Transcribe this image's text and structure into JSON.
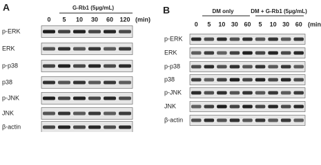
{
  "panels": [
    {
      "label": "A",
      "treatment": "G-Rb1 (5μg/mL)",
      "times": [
        "0",
        "5",
        "10",
        "30",
        "60",
        "120"
      ],
      "unit": "(min)",
      "rows": [
        "p-ERK",
        "ERK",
        "p-p38",
        "p38",
        "p-JNK",
        "JNK",
        "β-actin"
      ]
    },
    {
      "label": "B",
      "groups": [
        {
          "name": "DM only"
        },
        {
          "name": "DM + G-Rb1 (5μg/mL)"
        }
      ],
      "times": [
        "0",
        "5",
        "10",
        "30",
        "60",
        "5",
        "10",
        "30",
        "60"
      ],
      "unit": "(min)",
      "rows": [
        "p-ERK",
        "ERK",
        "p-p38",
        "p38",
        "p-JNK",
        "JNK",
        "β-actin"
      ]
    }
  ]
}
